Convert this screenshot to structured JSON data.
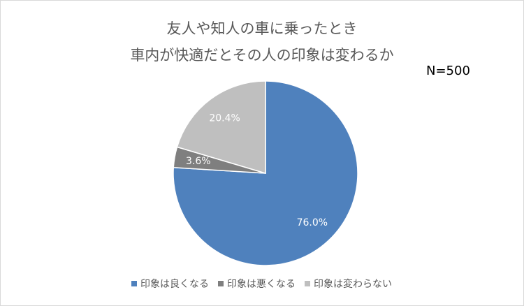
{
  "chart_data": {
    "type": "pie",
    "title": [
      "友人や知人の車に乗ったとき",
      "車内が快適だとその人の印象は変わるか"
    ],
    "annotation": "N=500",
    "categories": [
      "印象は良くなる",
      "印象は悪くなる",
      "印象は変わらない"
    ],
    "values": [
      76.0,
      3.6,
      20.4
    ],
    "value_labels": [
      "76.0%",
      "3.6%",
      "20.4%"
    ],
    "colors": [
      "#4f81bd",
      "#7f7f7f",
      "#bfbfbf"
    ],
    "legend": "bottom"
  }
}
